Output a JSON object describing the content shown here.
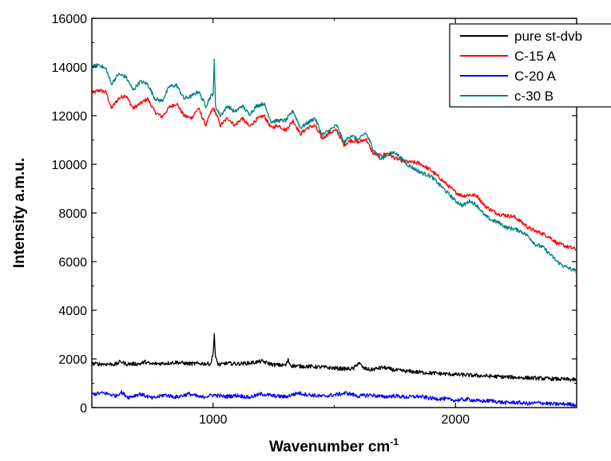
{
  "chart_data": {
    "type": "line",
    "xlabel": "Wavenumber cm",
    "xlabel_sup": "-1",
    "ylabel": "Intensity a.m.u.",
    "xlim": [
      500,
      2500
    ],
    "ylim": [
      0,
      16000
    ],
    "xticks": [
      1000,
      2000
    ],
    "xtick_labels": [
      "1000",
      "2000"
    ],
    "yticks": [
      0,
      2000,
      4000,
      6000,
      8000,
      10000,
      12000,
      14000,
      16000
    ],
    "ytick_labels": [
      "0",
      "2000",
      "4000",
      "6000",
      "8000",
      "10000",
      "12000",
      "14000",
      "16000"
    ],
    "legend_position": "top-right",
    "series": [
      {
        "name": "pure st-dvb",
        "color": "#000000",
        "x": [
          500,
          550,
          600,
          620,
          640,
          700,
          720,
          740,
          800,
          850,
          900,
          950,
          990,
          1000,
          1005,
          1010,
          1020,
          1030,
          1050,
          1100,
          1150,
          1200,
          1250,
          1300,
          1310,
          1320,
          1330,
          1350,
          1400,
          1450,
          1500,
          1550,
          1580,
          1600,
          1620,
          1650,
          1700,
          1750,
          1800,
          1900,
          2000,
          2100,
          2200,
          2300,
          2400,
          2500
        ],
        "y": [
          1800,
          1790,
          1780,
          1900,
          1790,
          1800,
          1880,
          1790,
          1820,
          1860,
          1800,
          1810,
          1800,
          2200,
          3050,
          2050,
          1800,
          1750,
          1820,
          1800,
          1830,
          1900,
          1760,
          1740,
          1950,
          1740,
          1720,
          1700,
          1690,
          1660,
          1620,
          1590,
          1600,
          1850,
          1620,
          1550,
          1650,
          1540,
          1490,
          1420,
          1360,
          1310,
          1260,
          1220,
          1180,
          1140
        ]
      },
      {
        "name": "C-15 A",
        "color": "#ff0000",
        "x": [
          500,
          530,
          560,
          580,
          610,
          640,
          670,
          700,
          730,
          760,
          790,
          820,
          850,
          880,
          910,
          940,
          970,
          990,
          1000,
          1010,
          1030,
          1060,
          1090,
          1120,
          1150,
          1180,
          1210,
          1240,
          1270,
          1300,
          1330,
          1360,
          1390,
          1420,
          1450,
          1480,
          1510,
          1540,
          1570,
          1600,
          1630,
          1660,
          1690,
          1720,
          1750,
          1800,
          1850,
          1900,
          1950,
          2000,
          2030,
          2060,
          2090,
          2120,
          2150,
          2180,
          2210,
          2240,
          2270,
          2300,
          2330,
          2360,
          2390,
          2420,
          2450,
          2500
        ],
        "y": [
          12900,
          13050,
          12950,
          12300,
          12700,
          12850,
          12300,
          12500,
          12700,
          12150,
          11950,
          12350,
          12500,
          12000,
          11900,
          12300,
          11600,
          12100,
          12300,
          12150,
          11600,
          11900,
          11600,
          11900,
          11550,
          11850,
          12000,
          11500,
          11600,
          11400,
          11800,
          11250,
          11500,
          11600,
          11050,
          11300,
          11400,
          10800,
          11000,
          10900,
          11050,
          10450,
          10350,
          10450,
          10250,
          10100,
          10050,
          9750,
          9300,
          8850,
          8700,
          8750,
          8700,
          8300,
          8100,
          7950,
          7900,
          7850,
          7650,
          7400,
          7250,
          7150,
          7000,
          6750,
          6650,
          6500
        ]
      },
      {
        "name": "C-20 A",
        "color": "#0000ff",
        "x": [
          500,
          550,
          600,
          620,
          650,
          700,
          750,
          800,
          850,
          900,
          950,
          1000,
          1050,
          1100,
          1150,
          1200,
          1250,
          1300,
          1350,
          1400,
          1450,
          1500,
          1550,
          1600,
          1650,
          1700,
          1750,
          1800,
          1850,
          1900,
          1950,
          2000,
          2050,
          2100,
          2150,
          2200,
          2250,
          2300,
          2350,
          2400,
          2450,
          2500
        ],
        "y": [
          550,
          600,
          480,
          640,
          420,
          560,
          380,
          520,
          430,
          560,
          420,
          520,
          450,
          500,
          420,
          560,
          480,
          440,
          600,
          520,
          460,
          520,
          600,
          470,
          520,
          440,
          480,
          430,
          460,
          380,
          360,
          300,
          340,
          260,
          280,
          200,
          210,
          160,
          200,
          140,
          150,
          120
        ]
      },
      {
        "name": "c-30 B",
        "color": "#008080",
        "x": [
          500,
          530,
          560,
          580,
          610,
          640,
          670,
          700,
          730,
          760,
          790,
          820,
          850,
          880,
          910,
          940,
          970,
          990,
          1000,
          1005,
          1010,
          1030,
          1060,
          1090,
          1120,
          1150,
          1180,
          1210,
          1240,
          1270,
          1300,
          1330,
          1360,
          1390,
          1420,
          1450,
          1480,
          1510,
          1540,
          1570,
          1600,
          1630,
          1660,
          1690,
          1720,
          1750,
          1800,
          1850,
          1900,
          1950,
          2000,
          2030,
          2060,
          2090,
          2120,
          2150,
          2180,
          2210,
          2240,
          2270,
          2300,
          2330,
          2360,
          2390,
          2420,
          2450,
          2500
        ],
        "y": [
          14000,
          14100,
          13900,
          13300,
          13700,
          13600,
          13050,
          13400,
          13300,
          12700,
          12600,
          13200,
          13250,
          12700,
          12800,
          13000,
          12400,
          12800,
          12900,
          14250,
          12400,
          12000,
          12400,
          12150,
          12400,
          12050,
          12400,
          12500,
          11750,
          11800,
          11800,
          12200,
          11500,
          11700,
          11900,
          11200,
          11400,
          11600,
          10900,
          11200,
          11000,
          11300,
          10650,
          10200,
          10400,
          10500,
          10000,
          9700,
          9500,
          9000,
          8500,
          8300,
          8500,
          8300,
          7900,
          7700,
          7600,
          7400,
          7350,
          7250,
          7050,
          6700,
          6600,
          6300,
          6000,
          5800,
          5600
        ]
      }
    ]
  }
}
